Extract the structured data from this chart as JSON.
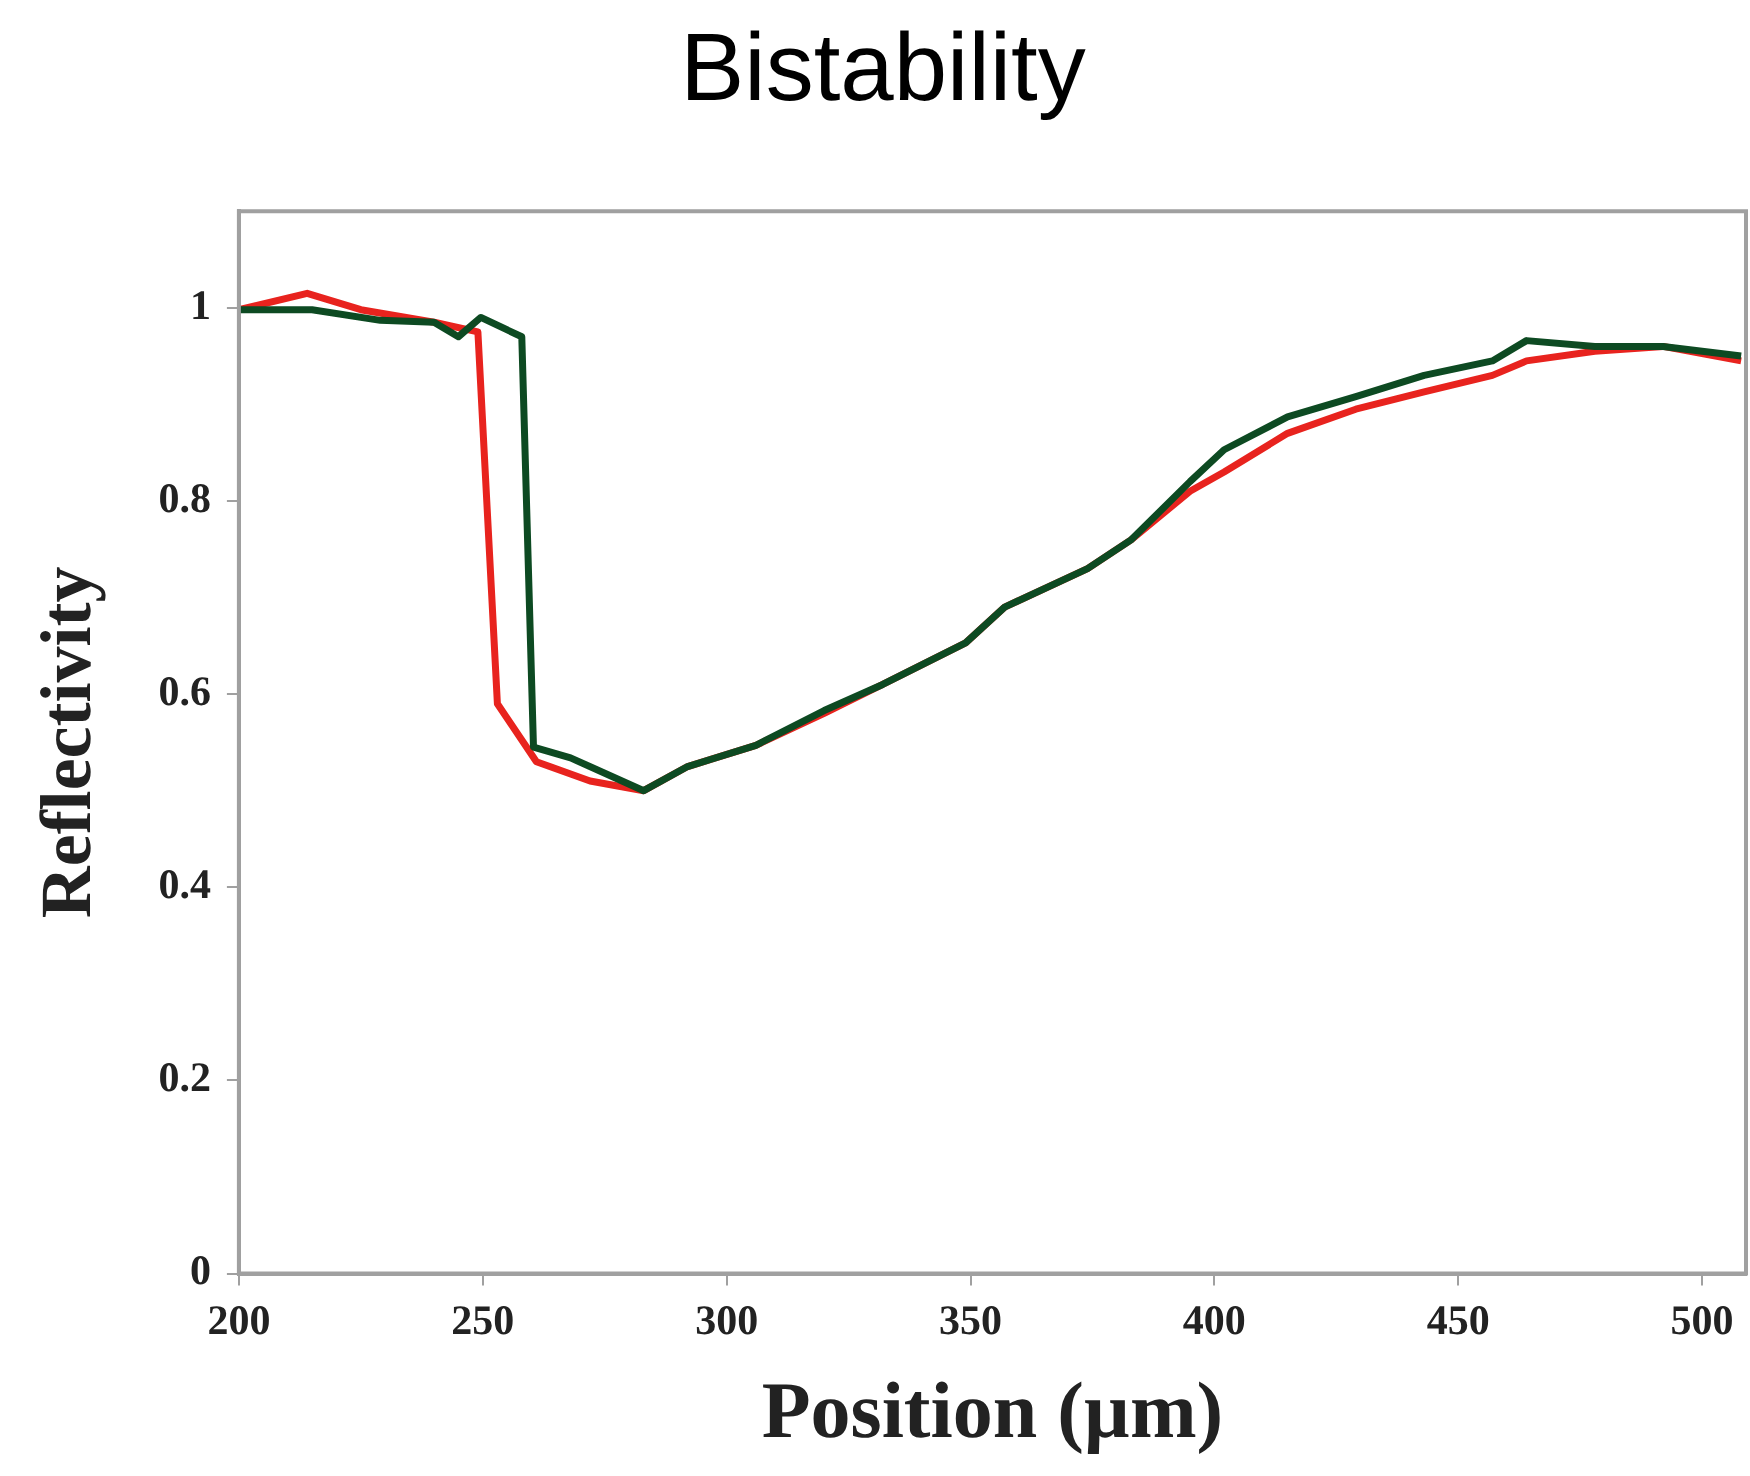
{
  "chart_data": {
    "type": "line",
    "title": "Bistability",
    "xlabel": "Position (µm)",
    "ylabel": "Reflectivity",
    "xlim": [
      200,
      509
    ],
    "xticks": [
      200,
      250,
      300,
      350,
      400,
      450,
      500
    ],
    "ylim": [
      0,
      1.1
    ],
    "yticks": [
      0,
      0.2,
      0.4,
      0.6,
      0.8,
      1
    ],
    "grid": false,
    "legend": false,
    "marker": "none",
    "line_style": "solid",
    "series": [
      {
        "color": "#e8231e",
        "x": [
          200,
          214,
          225,
          240,
          249,
          253,
          261,
          272,
          283,
          292,
          306,
          320,
          332,
          349,
          357,
          374,
          383,
          395,
          402,
          415,
          429,
          443,
          457,
          464,
          478,
          492,
          508
        ],
        "values": [
          0.998,
          1.015,
          0.998,
          0.985,
          0.975,
          0.59,
          0.53,
          0.51,
          0.5,
          0.525,
          0.547,
          0.58,
          0.61,
          0.653,
          0.69,
          0.73,
          0.76,
          0.81,
          0.83,
          0.87,
          0.895,
          0.913,
          0.93,
          0.945,
          0.955,
          0.96,
          0.945
        ]
      },
      {
        "color": "#0d4a22",
        "x": [
          200,
          215,
          229,
          240,
          245,
          249.6,
          258,
          260.4,
          268,
          283,
          292,
          306,
          320,
          332,
          349,
          357,
          374,
          383,
          395,
          402,
          415,
          429,
          443,
          457,
          464,
          478,
          492,
          508
        ],
        "values": [
          0.998,
          0.998,
          0.987,
          0.985,
          0.97,
          0.99,
          0.97,
          0.545,
          0.534,
          0.5,
          0.525,
          0.547,
          0.583,
          0.61,
          0.653,
          0.69,
          0.73,
          0.76,
          0.82,
          0.853,
          0.887,
          0.908,
          0.93,
          0.945,
          0.966,
          0.96,
          0.96,
          0.95
        ]
      }
    ]
  }
}
